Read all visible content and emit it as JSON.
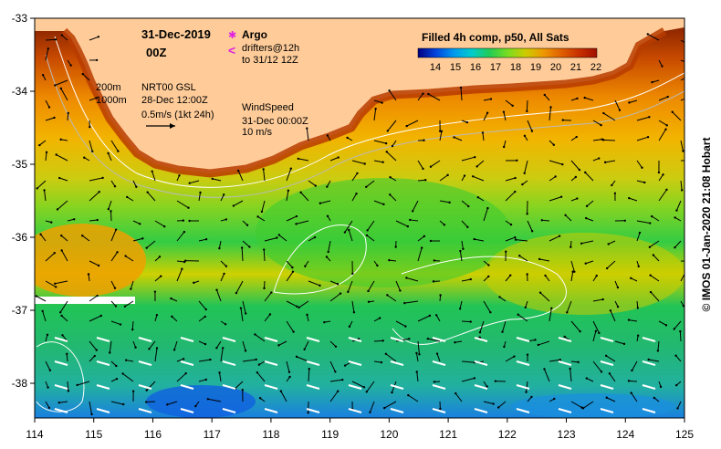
{
  "header": {
    "date": "31-Dec-2019",
    "time": "00Z"
  },
  "argo": {
    "label": "Argo",
    "drifters": "drifters@12h",
    "drifters_range": "to 31/12 12Z",
    "argo_color": "#e020e0",
    "drifter_color": "#e020e0"
  },
  "contours": {
    "c200": "200m",
    "c1000": "1000m",
    "contour_color": "#ffffff"
  },
  "currents": {
    "label": "NRT00 GSL",
    "date": "28-Dec 12:00Z",
    "scale": "0.5m/s (1kt 24h)"
  },
  "wind": {
    "label": "WindSpeed",
    "date": "31-Dec 00:00Z",
    "scale": "10 m/s",
    "wind_color": "#ffffff"
  },
  "colorbar": {
    "title": "Filled 4h comp, p50, All Sats",
    "ticks": [
      "14",
      "15",
      "16",
      "17",
      "18",
      "19",
      "20",
      "21",
      "22"
    ],
    "colors": [
      "#000080",
      "#0044dd",
      "#0099ee",
      "#00cccc",
      "#22cc55",
      "#77dd22",
      "#cccc00",
      "#ee9900",
      "#e06000",
      "#c83000",
      "#a01000"
    ]
  },
  "map": {
    "land_color": "#ffcc99",
    "xaxis": {
      "ticks": [
        "114",
        "115",
        "116",
        "117",
        "118",
        "119",
        "120",
        "121",
        "122",
        "123",
        "124",
        "125"
      ]
    },
    "yaxis": {
      "ticks": [
        "-33",
        "-34",
        "-35",
        "-36",
        "-37",
        "-38"
      ]
    }
  },
  "credit": "© IMOS 01-Jan-2020 21:08 Hobart"
}
